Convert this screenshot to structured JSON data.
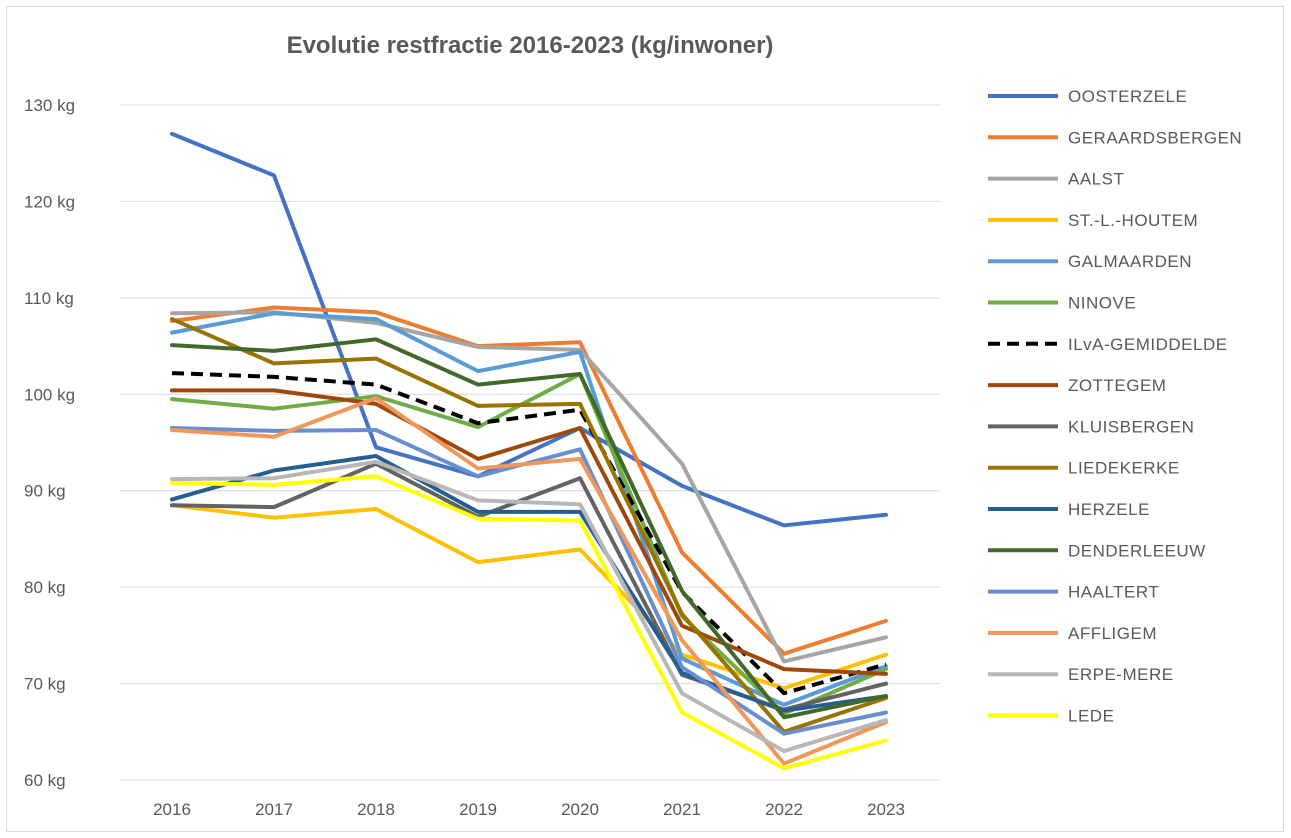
{
  "chart_data": {
    "type": "line",
    "title": "Evolutie restfractie 2016-2023 (kg/inwoner)",
    "xlabel": "",
    "ylabel": "",
    "categories": [
      "2016",
      "2017",
      "2018",
      "2019",
      "2020",
      "2021",
      "2022",
      "2023"
    ],
    "ylim": [
      60,
      130
    ],
    "yticks": [
      60,
      70,
      80,
      90,
      100,
      110,
      120,
      130
    ],
    "ytick_labels": [
      "60  kg",
      "70  kg",
      "80  kg",
      "90  kg",
      "100  kg",
      "110  kg",
      "120  kg",
      "130  kg"
    ],
    "grid": true,
    "legend_position": "right",
    "series": [
      {
        "name": "OOSTERZELE",
        "color": "#4472C4",
        "dash": false,
        "values": [
          127,
          122.7,
          94.5,
          91.5,
          96.5,
          90.5,
          86.4,
          87.5
        ]
      },
      {
        "name": "GERAARDSBERGEN",
        "color": "#ED7D31",
        "dash": false,
        "values": [
          107.6,
          109,
          108.5,
          105,
          105.4,
          83.6,
          73.1,
          76.5
        ]
      },
      {
        "name": "AALST",
        "color": "#A5A5A5",
        "dash": false,
        "values": [
          108.4,
          108.5,
          107.4,
          104.9,
          104.6,
          92.8,
          72.3,
          74.8
        ]
      },
      {
        "name": "ST.-L.-HOUTEM",
        "color": "#FFC000",
        "dash": false,
        "values": [
          88.5,
          87.2,
          88.1,
          82.6,
          83.9,
          73,
          69.5,
          73
        ]
      },
      {
        "name": "GALMAARDEN",
        "color": "#5B9BD5",
        "dash": false,
        "values": [
          106.4,
          108.4,
          107.8,
          102.4,
          104.4,
          72.6,
          67.8,
          71.8
        ]
      },
      {
        "name": "NINOVE",
        "color": "#70AD47",
        "dash": false,
        "values": [
          99.5,
          98.5,
          99.8,
          96.6,
          102.1,
          77,
          66.9,
          71.5
        ]
      },
      {
        "name": "ILvA-GEMIDDELDE",
        "color": "#000000",
        "dash": true,
        "values": [
          102.2,
          101.8,
          101,
          97,
          98.4,
          79.5,
          69,
          72
        ]
      },
      {
        "name": "ZOTTEGEM",
        "color": "#9E480E",
        "dash": false,
        "values": [
          100.4,
          100.4,
          99,
          93.3,
          96.5,
          76,
          71.5,
          71
        ]
      },
      {
        "name": "KLUISBERGEN",
        "color": "#636363",
        "dash": false,
        "values": [
          88.5,
          88.3,
          92.8,
          87.3,
          91.3,
          70.9,
          67.3,
          70
        ]
      },
      {
        "name": "LIEDEKERKE",
        "color": "#997300",
        "dash": false,
        "values": [
          107.8,
          103.2,
          103.7,
          98.8,
          99,
          77.2,
          65,
          68.5
        ]
      },
      {
        "name": "HERZELE",
        "color": "#255E91",
        "dash": false,
        "values": [
          89.1,
          92.1,
          93.6,
          87.8,
          87.8,
          71.1,
          67.2,
          68.7
        ]
      },
      {
        "name": "DENDERLEEUW",
        "color": "#43682B",
        "dash": false,
        "values": [
          105.1,
          104.5,
          105.7,
          101,
          102.1,
          79.6,
          66.5,
          68.7
        ]
      },
      {
        "name": "HAALTERT",
        "color": "#698ED0",
        "dash": false,
        "values": [
          96.5,
          96.2,
          96.3,
          91.5,
          94.3,
          71.7,
          64.8,
          67
        ]
      },
      {
        "name": "AFFLIGEM",
        "color": "#F1975A",
        "dash": false,
        "values": [
          96.3,
          95.6,
          99.6,
          92.3,
          93.3,
          74.5,
          61.7,
          66
        ]
      },
      {
        "name": "ERPE-MERE",
        "color": "#B7B7B7",
        "dash": false,
        "values": [
          91.2,
          91.3,
          93,
          89,
          88.6,
          69,
          63,
          66.2
        ]
      },
      {
        "name": "LEDE",
        "color": "#FFFF00",
        "dash": false,
        "values": [
          90.8,
          90.6,
          91.5,
          87.1,
          86.9,
          67,
          61.2,
          64.1
        ]
      }
    ]
  }
}
